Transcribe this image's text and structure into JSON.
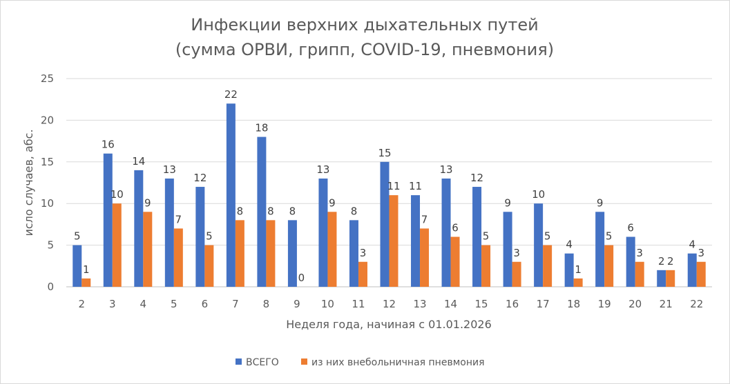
{
  "chart_data": {
    "type": "bar",
    "title_line1": "Инфекции верхних дыхательных путей",
    "title_line2": "(сумма ОРВИ, грипп, COVID-19, пневмония)",
    "xlabel": "Неделя года, начиная с 01.01.2026",
    "ylabel": "исло случаев, абс.",
    "ylim": [
      0,
      25
    ],
    "yticks": [
      0,
      5,
      10,
      15,
      20,
      25
    ],
    "grid": true,
    "legend_position": "bottom",
    "categories": [
      "2",
      "3",
      "4",
      "5",
      "6",
      "7",
      "8",
      "9",
      "10",
      "11",
      "12",
      "13",
      "14",
      "15",
      "16",
      "17",
      "18",
      "19",
      "20",
      "21",
      "22"
    ],
    "series": [
      {
        "name": "ВСЕГО",
        "color": "#4472c4",
        "values": [
          5,
          16,
          14,
          13,
          12,
          22,
          18,
          8,
          13,
          8,
          15,
          11,
          13,
          12,
          9,
          10,
          4,
          9,
          6,
          2,
          4
        ]
      },
      {
        "name": "из них внебольничная пневмония",
        "color": "#ed7d31",
        "values": [
          1,
          10,
          9,
          7,
          5,
          8,
          8,
          0,
          9,
          3,
          11,
          7,
          6,
          5,
          3,
          5,
          1,
          5,
          3,
          2,
          3
        ]
      }
    ]
  }
}
